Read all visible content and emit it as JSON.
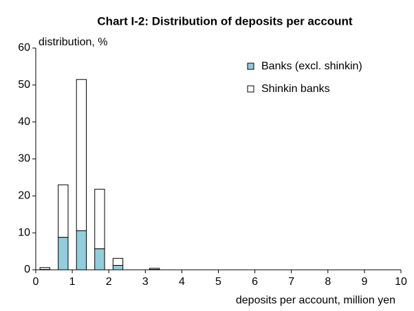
{
  "chart_data": {
    "type": "bar",
    "stacked": true,
    "title": "Chart I-2: Distribution of deposits per account",
    "y_label": "distribution, %",
    "x_label": "deposits per account, million  yen",
    "x": [
      0.25,
      0.75,
      1.25,
      1.75,
      2.25,
      3.25
    ],
    "series": [
      {
        "name": "Banks (excl. shinkin)",
        "color": "#92cddc",
        "values": [
          0.1,
          8.8,
          10.6,
          5.7,
          1.2,
          0.1
        ]
      },
      {
        "name": "Shinkin banks",
        "color": "#ffffff",
        "values": [
          0.5,
          14.2,
          40.9,
          16.1,
          1.9,
          0.3
        ]
      }
    ],
    "xlim": [
      0,
      10
    ],
    "xticks": [
      0,
      1,
      2,
      3,
      4,
      5,
      6,
      7,
      8,
      9,
      10
    ],
    "ylim": [
      0,
      60
    ],
    "yticks": [
      0,
      10,
      20,
      30,
      40,
      50,
      60
    ],
    "legend": "upper right"
  }
}
